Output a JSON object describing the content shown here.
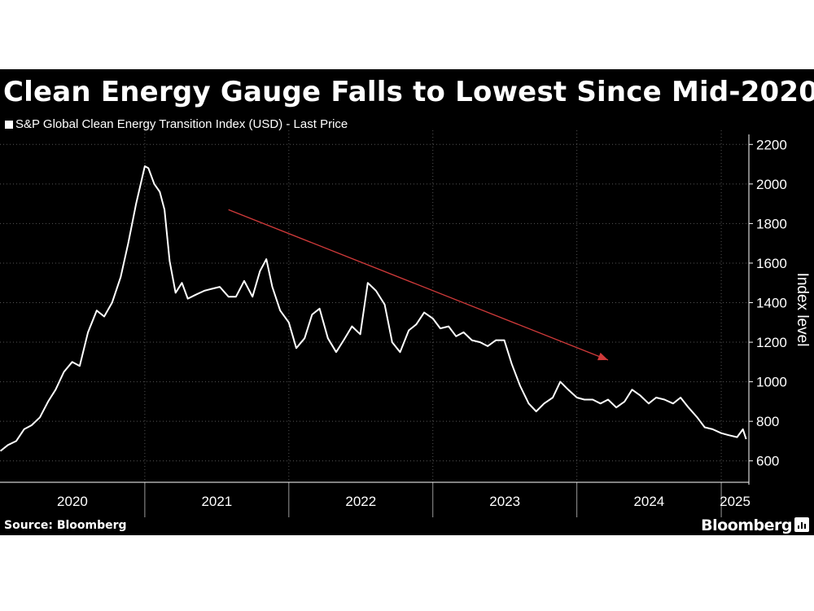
{
  "page": {
    "title": "Clean Energy Gauge Falls to Lowest Since Mid-2020",
    "legend_label": "S&P Global Clean Energy Transition Index (USD) - Last Price",
    "source": "Source: Bloomberg",
    "brand": "Bloomberg"
  },
  "colors": {
    "background": "#000000",
    "series_line": "#ffffff",
    "trend_arrow": "#d03a3a",
    "grid": "#555555"
  },
  "chart_data": {
    "type": "line",
    "title": "Clean Energy Gauge Falls to Lowest Since Mid-2020",
    "xlabel": "",
    "ylabel": "Index level",
    "x_ticks": [
      "2020",
      "2021",
      "2022",
      "2023",
      "2024",
      "2025"
    ],
    "y_ticks": [
      600,
      800,
      1000,
      1200,
      1400,
      1600,
      1800,
      2000,
      2200
    ],
    "ylim": [
      500,
      2230
    ],
    "xlim": [
      "2019-12-31",
      "2025-03-12"
    ],
    "grid": true,
    "series": [
      {
        "name": "S&P Global Clean Energy Transition Index (USD) - Last Price",
        "x": [
          "2020-01-01",
          "2020-01-20",
          "2020-02-10",
          "2020-03-01",
          "2020-03-20",
          "2020-04-10",
          "2020-05-01",
          "2020-05-20",
          "2020-06-10",
          "2020-07-01",
          "2020-07-20",
          "2020-08-10",
          "2020-09-01",
          "2020-09-20",
          "2020-10-10",
          "2020-11-01",
          "2020-11-20",
          "2020-12-10",
          "2021-01-01",
          "2021-01-10",
          "2021-01-25",
          "2021-02-08",
          "2021-02-20",
          "2021-03-05",
          "2021-03-20",
          "2021-04-05",
          "2021-04-20",
          "2021-05-10",
          "2021-06-01",
          "2021-06-20",
          "2021-07-10",
          "2021-08-01",
          "2021-08-20",
          "2021-09-10",
          "2021-10-01",
          "2021-10-20",
          "2021-11-05",
          "2021-11-20",
          "2021-12-10",
          "2022-01-01",
          "2022-01-20",
          "2022-02-10",
          "2022-03-01",
          "2022-03-20",
          "2022-04-10",
          "2022-05-01",
          "2022-05-20",
          "2022-06-10",
          "2022-07-01",
          "2022-07-20",
          "2022-08-10",
          "2022-09-01",
          "2022-09-20",
          "2022-10-10",
          "2022-11-01",
          "2022-11-20",
          "2022-12-10",
          "2023-01-01",
          "2023-01-20",
          "2023-02-10",
          "2023-03-01",
          "2023-03-20",
          "2023-04-10",
          "2023-05-01",
          "2023-05-20",
          "2023-06-10",
          "2023-07-01",
          "2023-07-20",
          "2023-08-10",
          "2023-09-01",
          "2023-09-20",
          "2023-10-10",
          "2023-11-01",
          "2023-11-20",
          "2023-12-10",
          "2024-01-01",
          "2024-01-20",
          "2024-02-10",
          "2024-03-01",
          "2024-03-20",
          "2024-04-10",
          "2024-05-01",
          "2024-05-20",
          "2024-06-10",
          "2024-07-01",
          "2024-07-20",
          "2024-08-10",
          "2024-09-01",
          "2024-09-20",
          "2024-10-10",
          "2024-11-01",
          "2024-11-20",
          "2024-12-10",
          "2025-01-01",
          "2025-01-20",
          "2025-02-10",
          "2025-02-25",
          "2025-03-05"
        ],
        "values": [
          650,
          680,
          700,
          760,
          780,
          820,
          900,
          960,
          1050,
          1100,
          1080,
          1250,
          1360,
          1330,
          1400,
          1530,
          1700,
          1900,
          2090,
          2080,
          2000,
          1960,
          1870,
          1610,
          1450,
          1500,
          1420,
          1440,
          1460,
          1470,
          1480,
          1430,
          1430,
          1510,
          1430,
          1560,
          1620,
          1480,
          1360,
          1300,
          1170,
          1220,
          1340,
          1370,
          1220,
          1150,
          1210,
          1280,
          1240,
          1500,
          1460,
          1390,
          1200,
          1150,
          1260,
          1290,
          1350,
          1320,
          1270,
          1280,
          1230,
          1250,
          1210,
          1200,
          1180,
          1210,
          1210,
          1090,
          980,
          890,
          850,
          890,
          920,
          1000,
          960,
          920,
          910,
          910,
          890,
          910,
          870,
          900,
          960,
          930,
          890,
          920,
          910,
          890,
          920,
          870,
          820,
          770,
          760,
          740,
          730,
          720,
          760,
          710
        ]
      }
    ],
    "annotations": [
      {
        "type": "trend_arrow",
        "from": {
          "x": "2021-08-01",
          "y": 1870
        },
        "to": {
          "x": "2024-03-20",
          "y": 1110
        }
      }
    ]
  }
}
